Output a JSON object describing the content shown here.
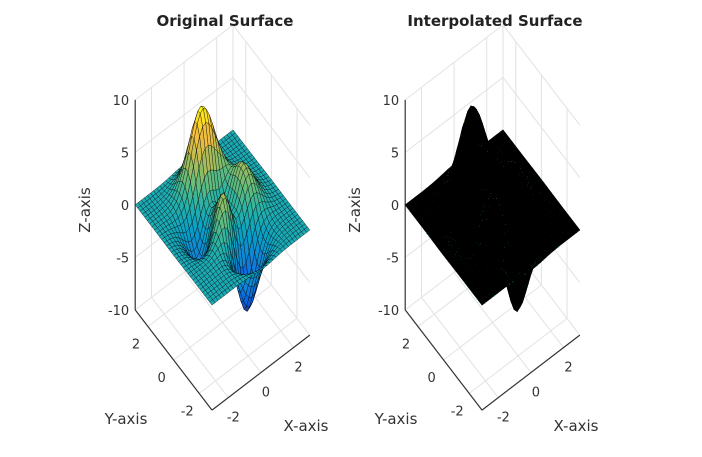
{
  "chart_data": [
    {
      "type": "surface",
      "title": "Original Surface",
      "xlabel": "X-axis",
      "ylabel": "Y-axis",
      "zlabel": "Z-axis",
      "surface": "peaks",
      "xlim": [
        -3,
        3
      ],
      "ylim": [
        -3,
        3
      ],
      "zlim": [
        -10,
        10
      ],
      "xticks": [
        "-2",
        "0",
        "2"
      ],
      "yticks": [
        "-2",
        "0",
        "2"
      ],
      "zticks": [
        "-10",
        "-5",
        "0",
        "5",
        "10"
      ],
      "colormap": "parula",
      "face_style": "colored",
      "grid": true
    },
    {
      "type": "surface",
      "title": "Interpolated Surface",
      "xlabel": "X-axis",
      "ylabel": "Y-axis",
      "zlabel": "Z-axis",
      "surface": "peaks",
      "xlim": [
        -3,
        3
      ],
      "ylim": [
        -3,
        3
      ],
      "zlim": [
        -10,
        10
      ],
      "xticks": [
        "-2",
        "0",
        "2"
      ],
      "yticks": [
        "-2",
        "0",
        "2"
      ],
      "zticks": [
        "-10",
        "-5",
        "0",
        "5",
        "10"
      ],
      "colormap": "parula",
      "face_style": "dense-black-mesh",
      "grid": true
    }
  ]
}
